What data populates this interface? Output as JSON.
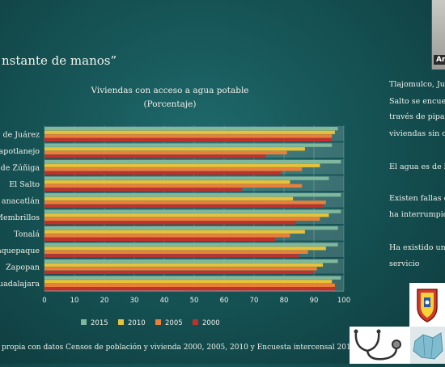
{
  "slide": {
    "title": "nstante de manos”",
    "source": "propia con datos Censos de población y vivienda 2000, 2005, 2010 y Encuesta intercensal 2015",
    "side_text": [
      "Tlajomulco, Ju",
      "Salto se encuer",
      "través de pipas",
      "viviendas sin c",
      "El agua es de b",
      "Existen fallas e",
      "ha interrumpid",
      "Ha existido un",
      "servicio"
    ],
    "participant_label": "An"
  },
  "colors": {
    "2015": "#7fb89c",
    "2010": "#e6c23a",
    "2005": "#e8803a",
    "2000": "#c0312b",
    "background": "#165456"
  },
  "icons": [
    "university-shield-logo",
    "stethoscope-icon",
    "map-icon"
  ],
  "chart_data": {
    "type": "bar",
    "orientation": "horizontal",
    "title": "Viviendas con acceso a agua potable",
    "subtitle": "(Porcentaje)",
    "categories": [
      "de Juárez",
      "apotlanejo",
      "de Zúñiga",
      "El Salto",
      "anacatlán",
      "Membrillos",
      "Tonalá",
      "aquepaque",
      "Zapopan",
      "uadalajara"
    ],
    "series": [
      {
        "name": "2015",
        "values": [
          98,
          96,
          99,
          95,
          99,
          99,
          98,
          98,
          98,
          99
        ]
      },
      {
        "name": "2010",
        "values": [
          97,
          87,
          92,
          82,
          83,
          95,
          87,
          94,
          93,
          96
        ]
      },
      {
        "name": "2005",
        "values": [
          96,
          81,
          86,
          86,
          94,
          92,
          82,
          88,
          91,
          97
        ]
      },
      {
        "name": "2000",
        "values": [
          96,
          74,
          79,
          66,
          93,
          84,
          77,
          85,
          90,
          97
        ]
      }
    ],
    "xticks": [
      "0",
      "10",
      "20",
      "30",
      "40",
      "50",
      "60",
      "70",
      "80",
      "90",
      "100"
    ],
    "xlim": [
      0,
      100
    ],
    "grid": true,
    "legend": "bottom"
  }
}
